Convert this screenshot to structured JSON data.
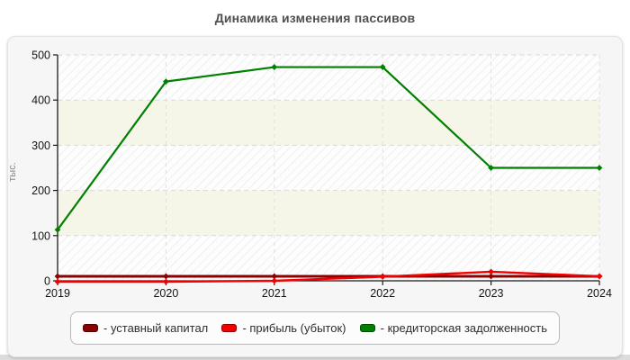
{
  "page": {
    "title": "Динамика изменения пассивов"
  },
  "chart_data": {
    "type": "line",
    "title": "Динамика изменения пассивов",
    "xlabel": "",
    "ylabel": "тыс.",
    "x": [
      "2019",
      "2020",
      "2021",
      "2022",
      "2023",
      "2024"
    ],
    "ylim": [
      0,
      500
    ],
    "yticks": [
      0,
      100,
      200,
      300,
      400,
      500
    ],
    "grid": "dashed",
    "legend_position": "bottom",
    "marker": "diamond",
    "series": [
      {
        "name": "уставный капитал",
        "color": "#8b0000",
        "values": [
          10,
          10,
          10,
          10,
          10,
          10
        ]
      },
      {
        "name": "прибыль (убыток)",
        "color": "#f40000",
        "values": [
          -2,
          -2,
          0,
          9,
          20,
          10
        ]
      },
      {
        "name": "кредиторская задолженность",
        "color": "#008000",
        "values": [
          113,
          441,
          473,
          473,
          250,
          250
        ]
      }
    ]
  },
  "legend": {
    "items": [
      {
        "label": "- уставный капитал"
      },
      {
        "label": "- прибыль (убыток)"
      },
      {
        "label": "- кредиторская задолженность"
      }
    ]
  },
  "colors": {
    "band_cream": "#f6f6e8",
    "band_plain": "#fdfdfd",
    "hatch_line": "#e7e7e7",
    "grid_h": "#d8d8d8",
    "grid_v": "#dedede",
    "axis": "#1a1a1a",
    "tick_text": "#151515",
    "ylabel_text": "#8a8a8a"
  }
}
